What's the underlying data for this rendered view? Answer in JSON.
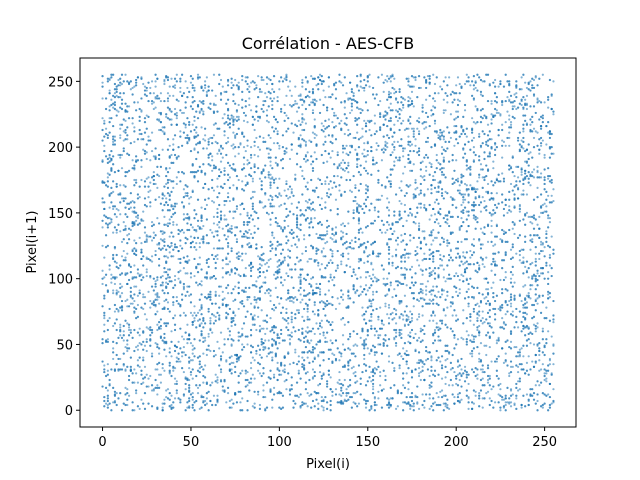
{
  "chart_data": {
    "type": "scatter",
    "title": "Corrélation - AES-CFB",
    "xlabel": "Pixel(i)",
    "ylabel": "Pixel(i+1)",
    "xlim": [
      -12.75,
      267.75
    ],
    "ylim": [
      -12.75,
      267.75
    ],
    "xticks": [
      0,
      50,
      100,
      150,
      200,
      250
    ],
    "yticks": [
      0,
      50,
      100,
      150,
      200,
      250
    ],
    "grid": false,
    "marker_color": "#1f77b4",
    "marker_opacity": 0.55,
    "point_count": 10000,
    "distribution": "uniform integer pairs over [0, 255] × [0, 255]",
    "x_range": [
      0,
      255
    ],
    "y_range": [
      0,
      255
    ]
  }
}
